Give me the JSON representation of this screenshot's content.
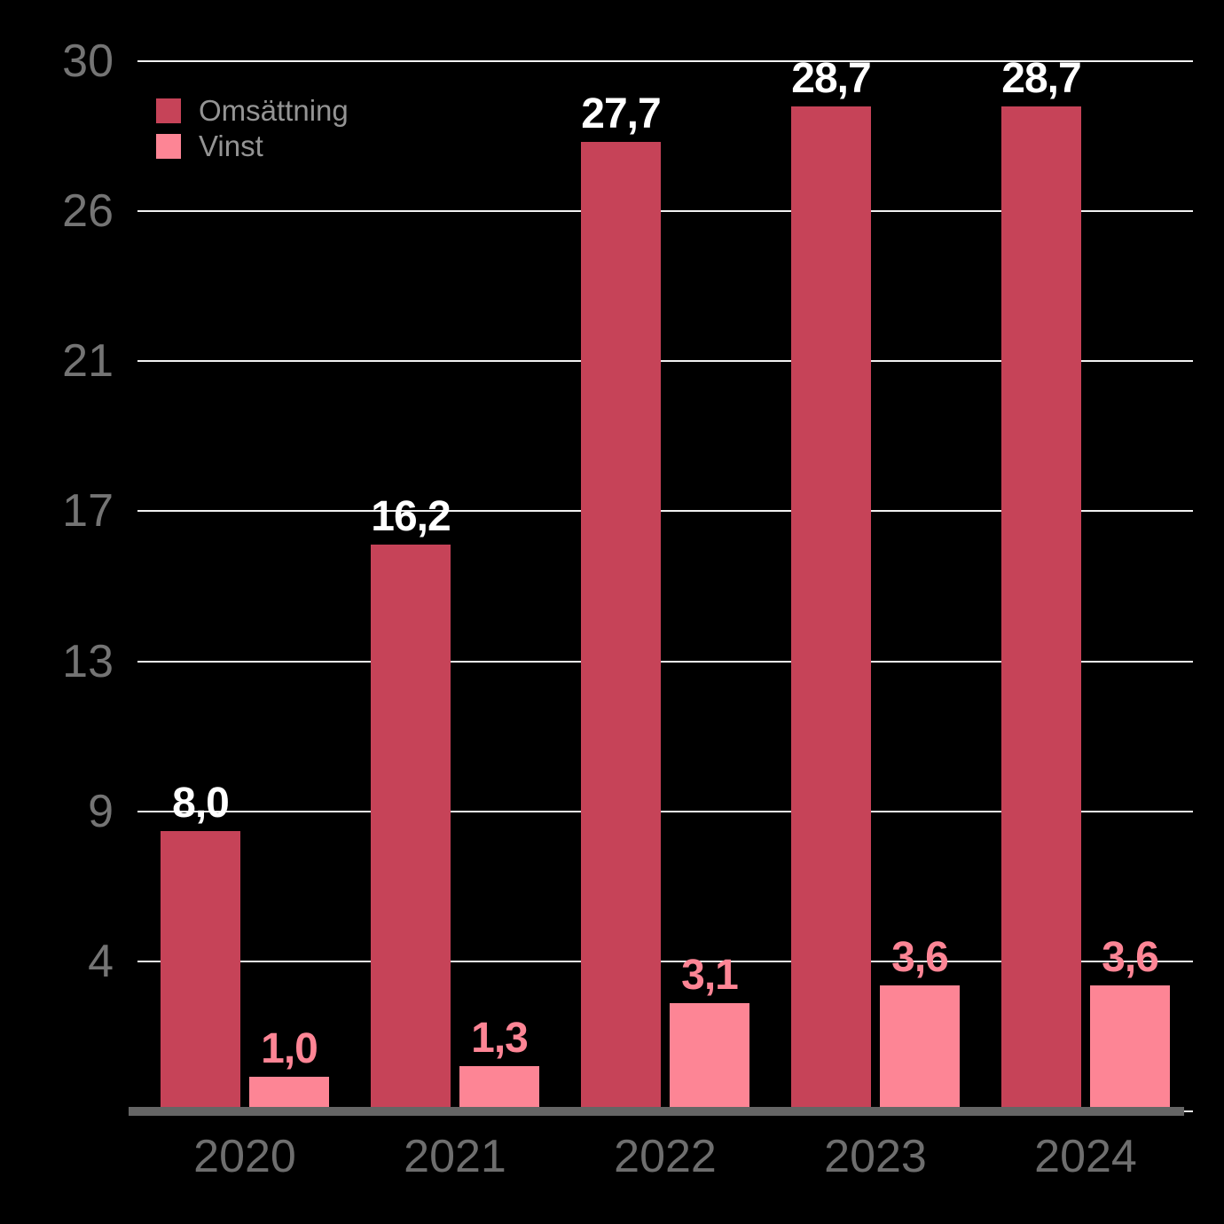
{
  "chart_data": {
    "type": "bar",
    "categories": [
      "2020",
      "2021",
      "2022",
      "2023",
      "2024"
    ],
    "series": [
      {
        "name": "Omsättning",
        "color": "#c64358",
        "label_color": "#ffffff",
        "values": [
          8.0,
          16.2,
          27.7,
          28.7,
          28.7
        ],
        "value_labels": [
          "8,0",
          "16,2",
          "27,7",
          "28,7",
          "28,7"
        ]
      },
      {
        "name": "Vinst",
        "color": "#fd8595",
        "label_color": "#fd8595",
        "values": [
          1.0,
          1.3,
          3.1,
          3.6,
          3.6
        ],
        "value_labels": [
          "1,0",
          "1,3",
          "3,1",
          "3,6",
          "3,6"
        ]
      }
    ],
    "title": "",
    "xlabel": "",
    "ylabel": "",
    "ylim": [
      0,
      30
    ],
    "y_tick_labels": [
      "30",
      "26",
      "21",
      "17",
      "13",
      "9",
      "4"
    ],
    "grid": true,
    "legend_position": "top-left"
  },
  "colors": {
    "background": "#000000",
    "gridline": "#f2f2f2",
    "axis_line": "#656565",
    "y_tick_text": "#747474",
    "x_tick_text": "#6e6e6e",
    "legend_text": "#949494"
  }
}
